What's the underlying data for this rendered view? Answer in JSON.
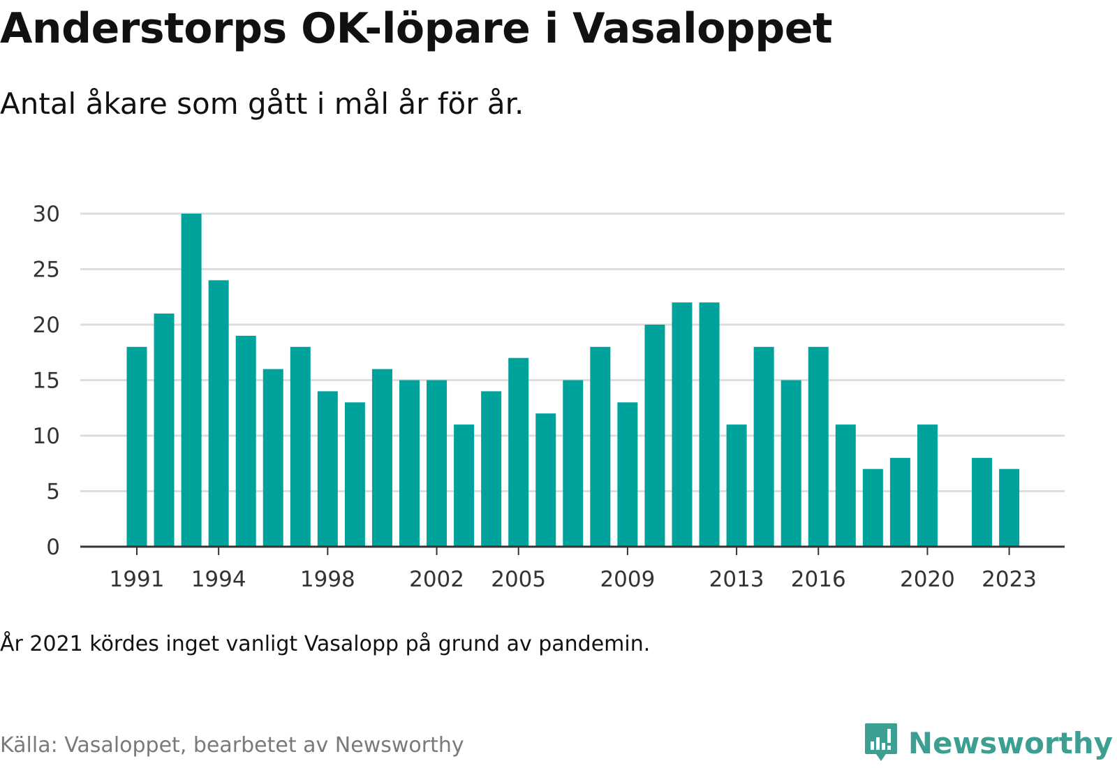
{
  "title": "Anderstorps OK-löpare i Vasaloppet",
  "subtitle": "Antal åkare som gått i mål år för år.",
  "note": "År 2021 kördes inget vanligt Vasalopp på grund av pandemin.",
  "source": "Källa: Vasaloppet, bearbetet av Newsworthy",
  "brand": {
    "name": "Newsworthy",
    "icon": "newsworthy-logo-icon",
    "color": "#3d9f92"
  },
  "chart_data": {
    "type": "bar",
    "title": "Anderstorps OK-löpare i Vasaloppet",
    "subtitle": "Antal åkare som gått i mål år för år.",
    "xlabel": "",
    "ylabel": "",
    "categories": [
      1991,
      1992,
      1993,
      1994,
      1995,
      1996,
      1997,
      1998,
      1999,
      2000,
      2001,
      2002,
      2003,
      2004,
      2005,
      2006,
      2007,
      2008,
      2009,
      2010,
      2011,
      2012,
      2013,
      2014,
      2015,
      2016,
      2017,
      2018,
      2019,
      2020,
      2021,
      2022,
      2023
    ],
    "values": [
      18,
      21,
      30,
      24,
      19,
      16,
      18,
      14,
      13,
      16,
      15,
      15,
      11,
      14,
      17,
      12,
      15,
      18,
      13,
      20,
      22,
      22,
      11,
      18,
      15,
      18,
      11,
      7,
      8,
      11,
      null,
      8,
      7
    ],
    "x_tick_labels": [
      "1991",
      "1994",
      "1998",
      "2002",
      "2005",
      "2009",
      "2013",
      "2016",
      "2020",
      "2023"
    ],
    "y_ticks": [
      0,
      5,
      10,
      15,
      20,
      25,
      30
    ],
    "ylim": [
      0,
      30
    ],
    "grid": true,
    "bar_color": "#00a39b",
    "grid_color": "#dddddd",
    "axis_color": "#333333"
  }
}
